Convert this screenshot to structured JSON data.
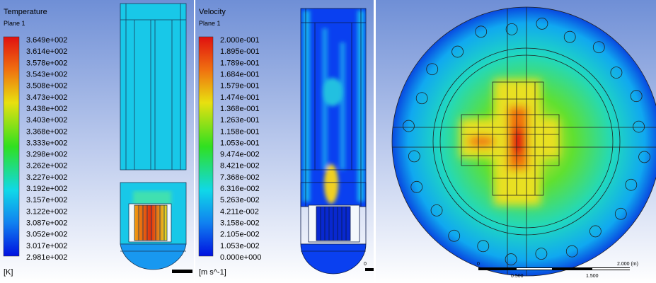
{
  "panels": [
    {
      "title": "Temperature",
      "subtitle": "Plane 1",
      "legend_labels": [
        "3.649e+002",
        "3.614e+002",
        "3.578e+002",
        "3.543e+002",
        "3.508e+002",
        "3.473e+002",
        "3.438e+002",
        "3.403e+002",
        "3.368e+002",
        "3.333e+002",
        "3.298e+002",
        "3.262e+002",
        "3.227e+002",
        "3.192e+002",
        "3.157e+002",
        "3.122e+002",
        "3.087e+002",
        "3.052e+002",
        "3.017e+002",
        "2.981e+002"
      ],
      "unit": "[K]"
    },
    {
      "title": "Velocity",
      "subtitle": "Plane 1",
      "legend_labels": [
        "2.000e-001",
        "1.895e-001",
        "1.789e-001",
        "1.684e-001",
        "1.579e-001",
        "1.474e-001",
        "1.368e-001",
        "1.263e-001",
        "1.158e-001",
        "1.053e-001",
        "9.474e-002",
        "8.421e-002",
        "7.368e-002",
        "6.316e-002",
        "5.263e-002",
        "4.211e-002",
        "3.158e-002",
        "2.105e-002",
        "1.053e-002",
        "0.000e+000"
      ],
      "unit": "[m s^-1]",
      "scale_labels": [
        "0"
      ]
    },
    {
      "scale_labels": [
        "0",
        "0.500",
        "1.500",
        "2.000 (m)"
      ]
    }
  ]
}
